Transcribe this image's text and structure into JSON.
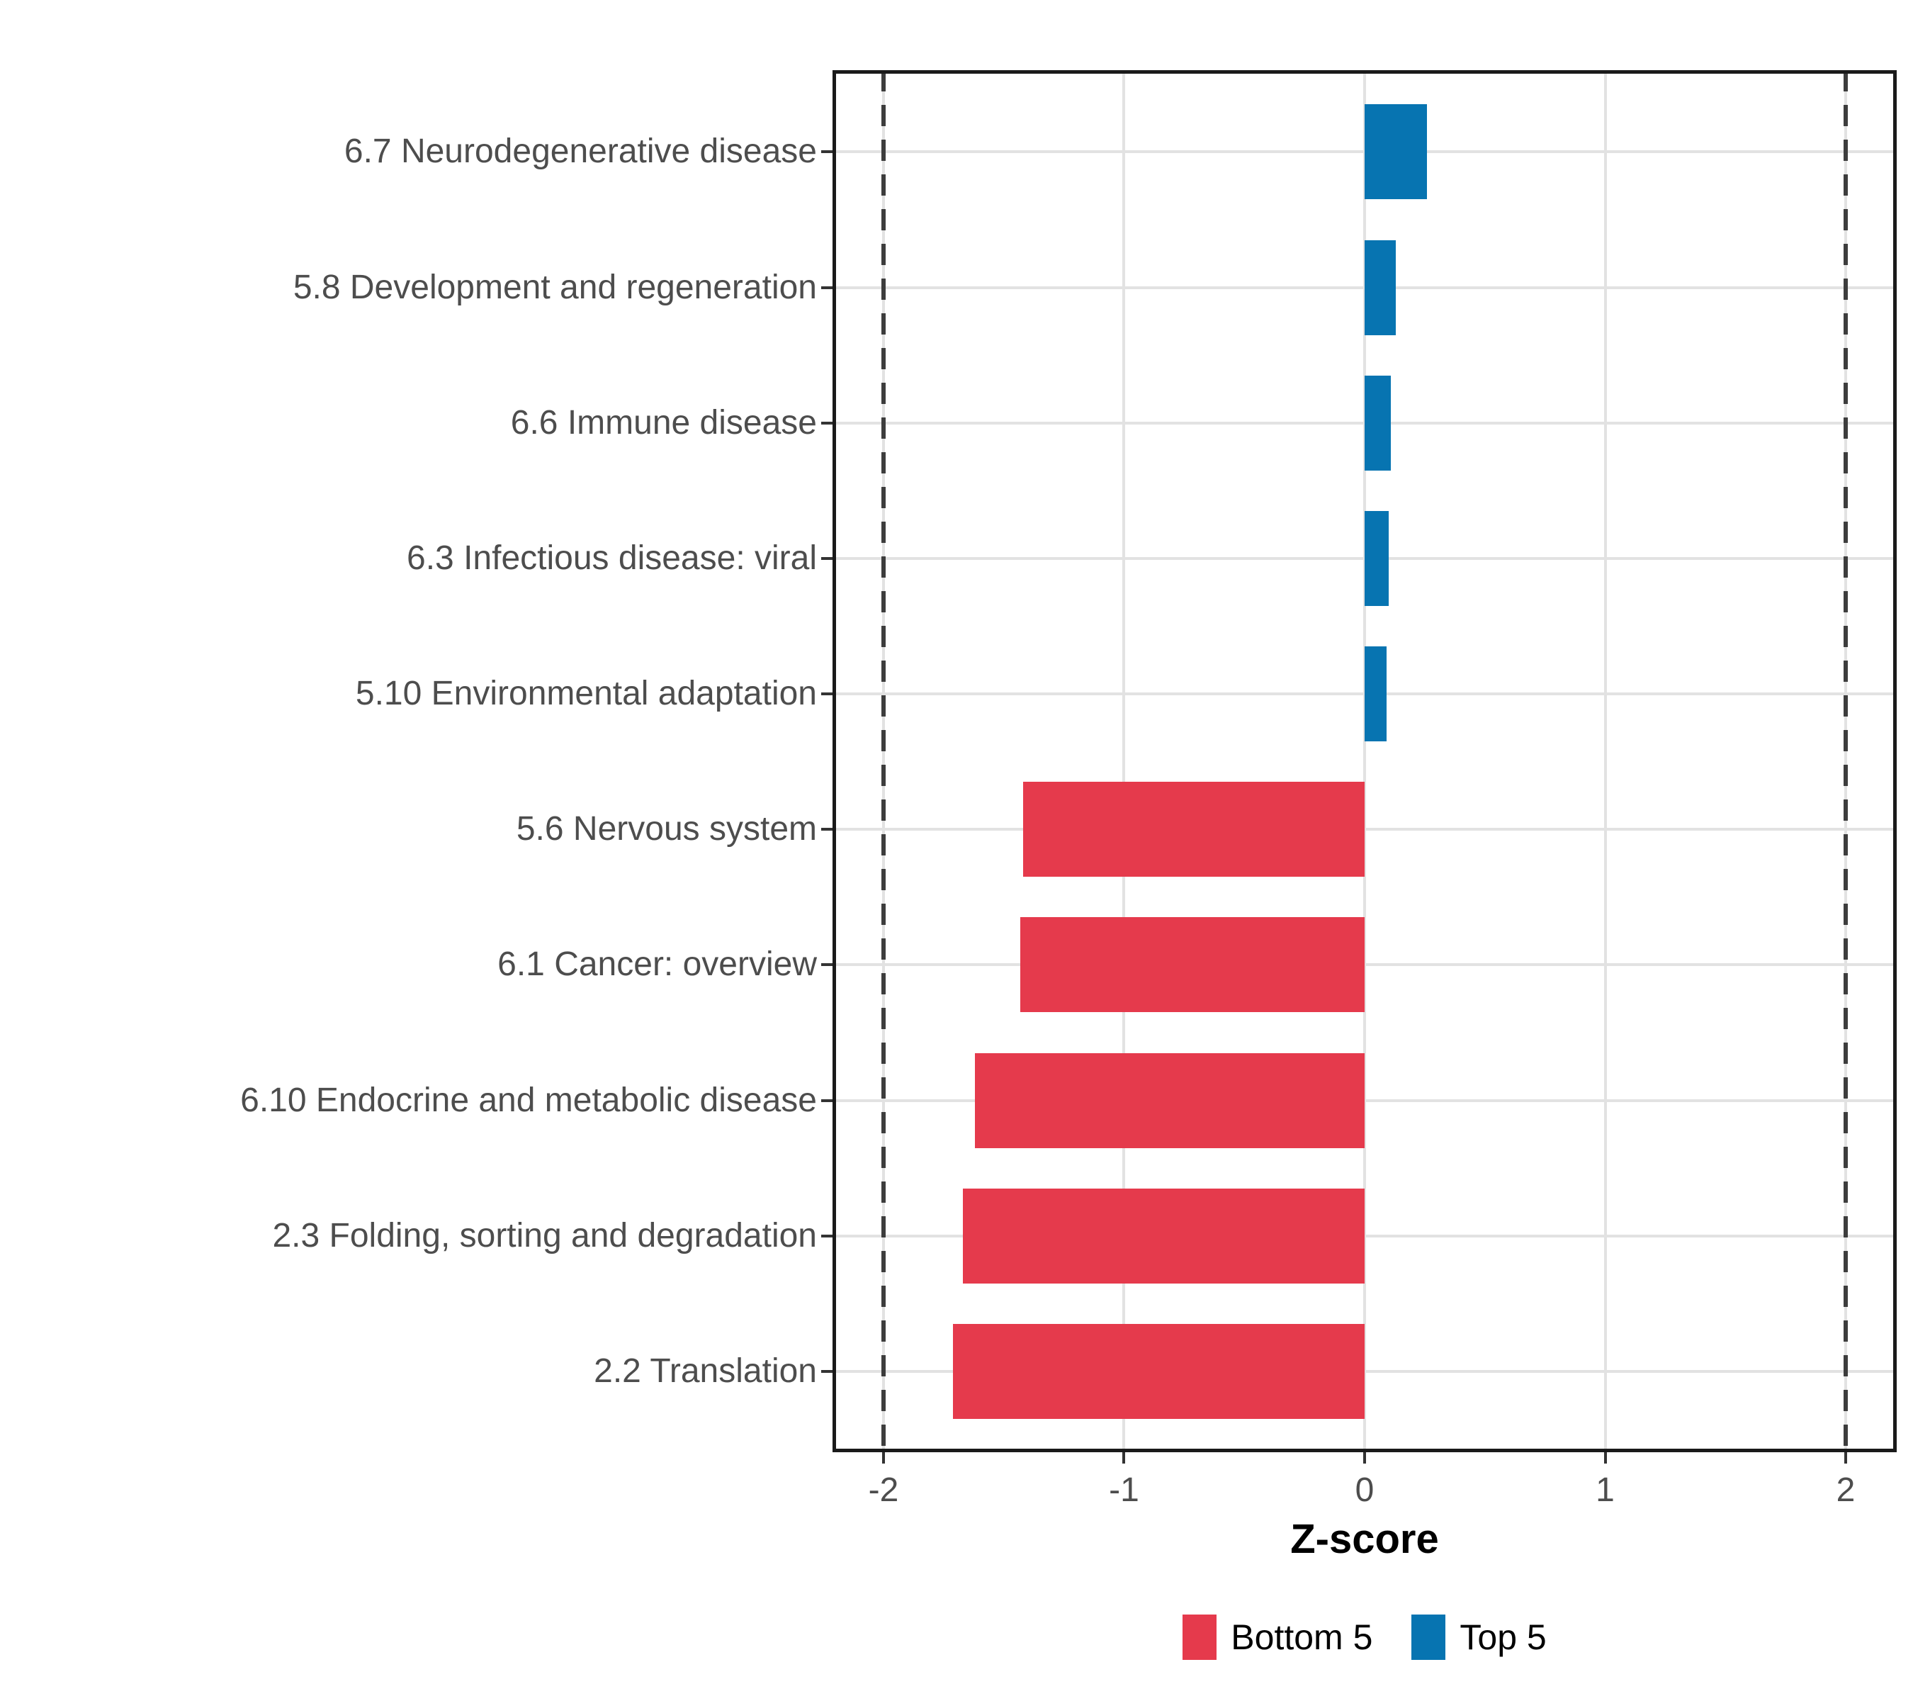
{
  "chart_data": {
    "type": "bar",
    "orientation": "horizontal",
    "title": "",
    "xlabel": "Z-score",
    "ylabel": "",
    "xlim": [
      -2.212,
      2.212
    ],
    "grid": "major-only",
    "x_ticks": [
      {
        "value": -2,
        "label": "-2"
      },
      {
        "value": -1,
        "label": "-1"
      },
      {
        "value": 0,
        "label": "0"
      },
      {
        "value": 1,
        "label": "1"
      },
      {
        "value": 2,
        "label": "2"
      }
    ],
    "reference_lines": [
      -2,
      2
    ],
    "bars": [
      {
        "category": "6.7 Neurodegenerative disease",
        "value": 0.26,
        "group": "Top 5"
      },
      {
        "category": "5.8 Development and regeneration",
        "value": 0.13,
        "group": "Top 5"
      },
      {
        "category": "6.6 Immune disease",
        "value": 0.11,
        "group": "Top 5"
      },
      {
        "category": "6.3 Infectious disease: viral",
        "value": 0.1,
        "group": "Top 5"
      },
      {
        "category": "5.10 Environmental adaptation",
        "value": 0.09,
        "group": "Top 5"
      },
      {
        "category": "5.6 Nervous system",
        "value": -1.42,
        "group": "Bottom 5"
      },
      {
        "category": "6.1 Cancer: overview",
        "value": -1.43,
        "group": "Bottom 5"
      },
      {
        "category": "6.10 Endocrine and metabolic disease",
        "value": -1.62,
        "group": "Bottom 5"
      },
      {
        "category": "2.3 Folding, sorting and degradation",
        "value": -1.67,
        "group": "Bottom 5"
      },
      {
        "category": "2.2 Translation",
        "value": -1.71,
        "group": "Bottom 5"
      }
    ],
    "legend": {
      "position": "bottom",
      "entries": [
        {
          "label": "Bottom 5",
          "color": "#E53A4C"
        },
        {
          "label": "Top 5",
          "color": "#0774B1"
        }
      ]
    }
  },
  "colors": {
    "bottom5": "#E53A4C",
    "top5": "#0774B1",
    "grid": "#E2E2E2",
    "axis_text": "#4D4D4D",
    "panel_border": "#1A1A1A",
    "reference_line": "#3D3D3D",
    "background": "#FFFFFF"
  }
}
